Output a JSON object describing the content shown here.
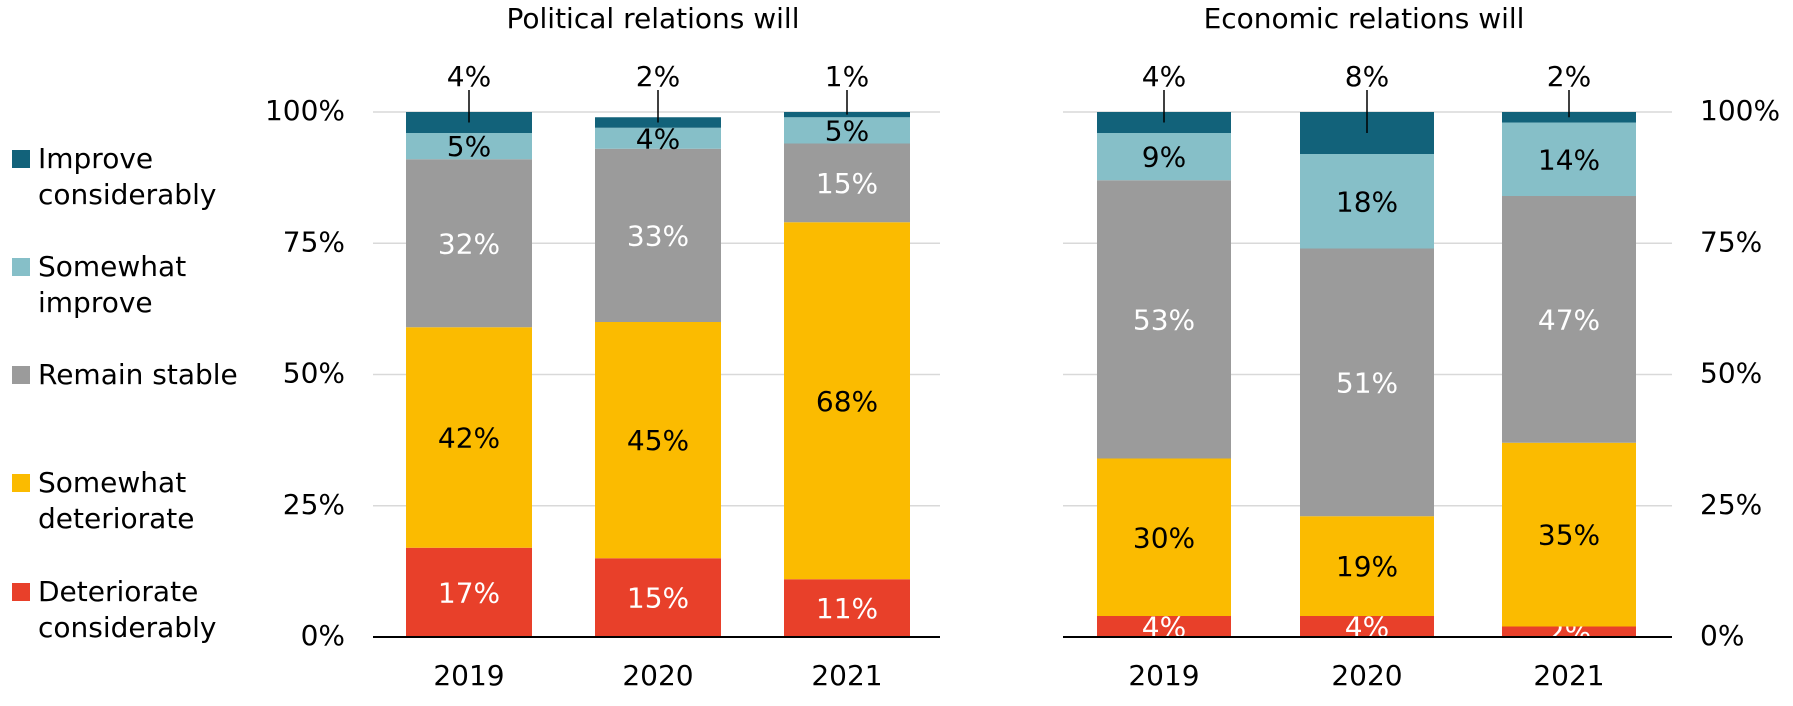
{
  "chart_data": [
    {
      "type": "stacked-bar",
      "title": "Political relations will",
      "categories": [
        "2019",
        "2020",
        "2021"
      ],
      "ylim": [
        0,
        100
      ],
      "yticks": [
        {
          "value": 0,
          "label": "0%"
        },
        {
          "value": 25,
          "label": "25%"
        },
        {
          "value": 50,
          "label": "50%"
        },
        {
          "value": 75,
          "label": "75%"
        },
        {
          "value": 100,
          "label": "100%"
        }
      ],
      "grid": true,
      "y_axis_position": "left",
      "legend": "left",
      "series": [
        {
          "name": "Deteriorate considerably",
          "color": "#e8402a",
          "label_color": "#ffffff",
          "values": [
            17,
            15,
            11
          ],
          "value_labels": [
            "17%",
            "15%",
            "11%"
          ]
        },
        {
          "name": "Somewhat deteriorate",
          "color": "#fbbb00",
          "label_color": "#000000",
          "values": [
            42,
            45,
            68
          ],
          "value_labels": [
            "42%",
            "45%",
            "68%"
          ]
        },
        {
          "name": "Remain stable",
          "color": "#9b9b9b",
          "label_color": "#ffffff",
          "values": [
            32,
            33,
            15
          ],
          "value_labels": [
            "32%",
            "33%",
            "15%"
          ]
        },
        {
          "name": "Somewhat improve",
          "color": "#86bfc8",
          "label_color": "#000000",
          "values": [
            5,
            4,
            5
          ],
          "value_labels": [
            "5%",
            "4%",
            "5%"
          ]
        },
        {
          "name": "Improve considerably",
          "color": "#12627a",
          "label_color": "#000000",
          "values": [
            4,
            2,
            1
          ],
          "value_labels": [
            "4%",
            "2%",
            "1%"
          ]
        }
      ]
    },
    {
      "type": "stacked-bar",
      "title": "Economic relations will",
      "categories": [
        "2019",
        "2020",
        "2021"
      ],
      "ylim": [
        0,
        100
      ],
      "yticks": [
        {
          "value": 0,
          "label": "0%"
        },
        {
          "value": 25,
          "label": "25%"
        },
        {
          "value": 50,
          "label": "50%"
        },
        {
          "value": 75,
          "label": "75%"
        },
        {
          "value": 100,
          "label": "100%"
        }
      ],
      "grid": true,
      "y_axis_position": "right",
      "series": [
        {
          "color": "#e8402a",
          "label_color": "#ffffff",
          "values": [
            4,
            4,
            2
          ],
          "value_labels": [
            "4%",
            "4%",
            "2%"
          ]
        },
        {
          "color": "#fbbb00",
          "label_color": "#000000",
          "values": [
            30,
            19,
            35
          ],
          "value_labels": [
            "30%",
            "19%",
            "35%"
          ]
        },
        {
          "color": "#9b9b9b",
          "label_color": "#ffffff",
          "values": [
            53,
            51,
            47
          ],
          "value_labels": [
            "53%",
            "51%",
            "47%"
          ]
        },
        {
          "color": "#86bfc8",
          "label_color": "#000000",
          "values": [
            9,
            18,
            14
          ],
          "value_labels": [
            "9%",
            "18%",
            "14%"
          ]
        },
        {
          "color": "#12627a",
          "label_color": "#000000",
          "values": [
            4,
            8,
            2
          ],
          "value_labels": [
            "4%",
            "8%",
            "2%"
          ]
        }
      ]
    }
  ]
}
